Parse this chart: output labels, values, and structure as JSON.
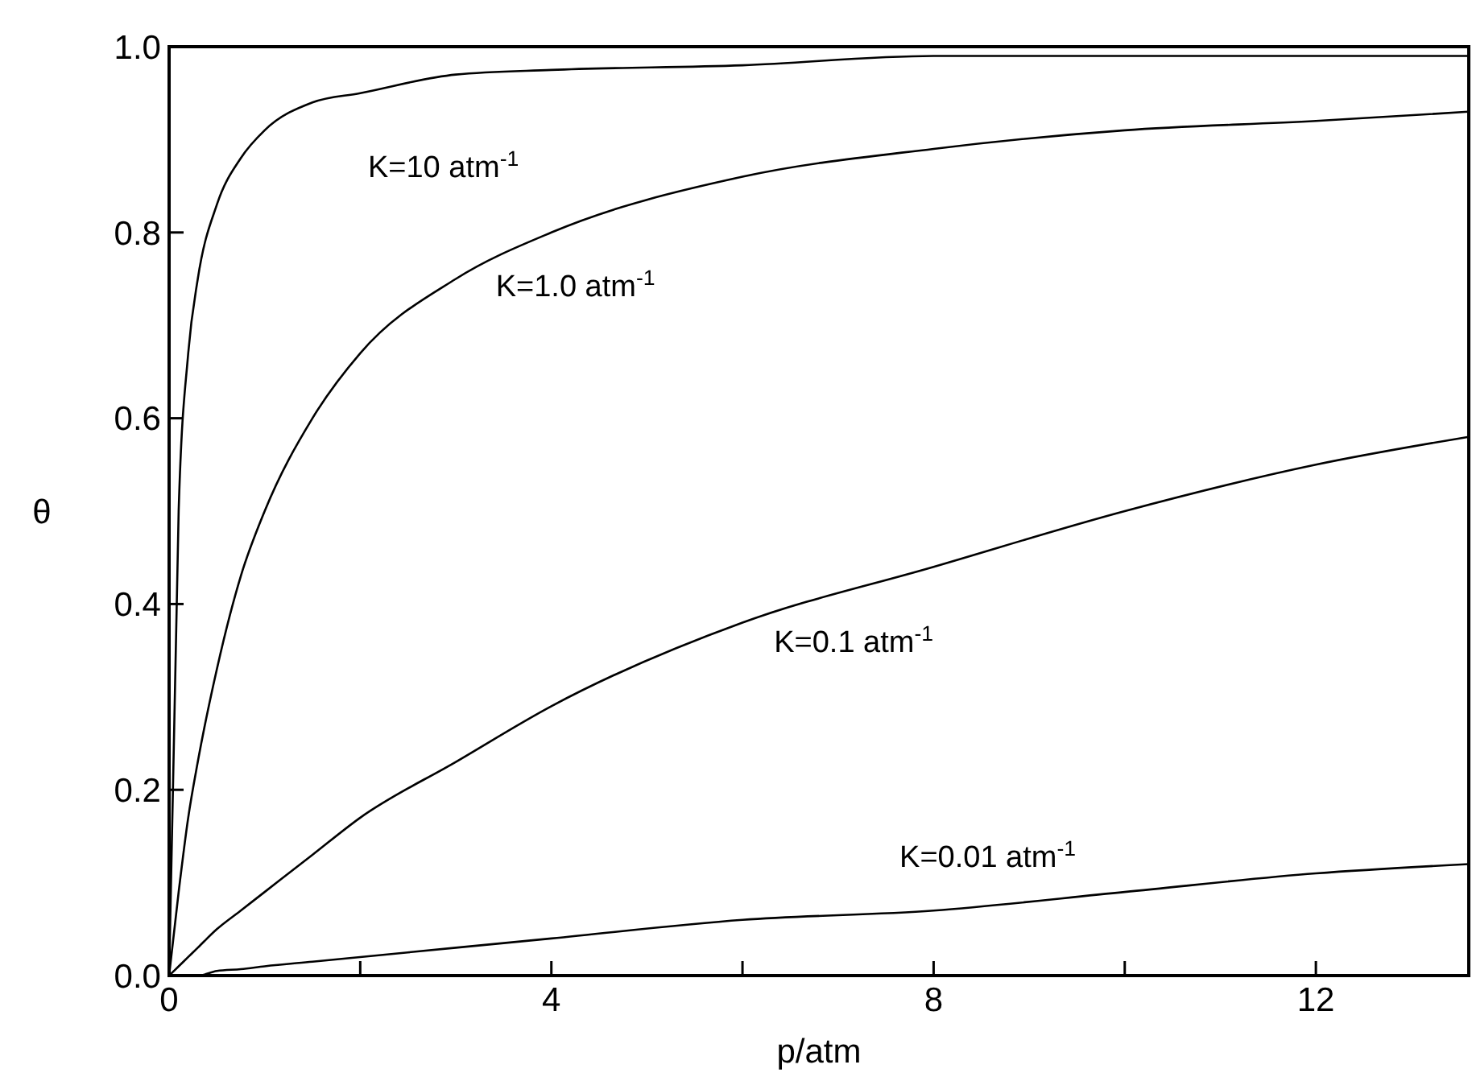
{
  "chart_data": {
    "type": "line",
    "xlabel": "p/atm",
    "ylabel": "θ",
    "x": [
      0,
      0.1,
      0.2,
      0.3,
      0.5,
      0.75,
      1,
      1.5,
      2,
      3,
      4,
      6,
      8,
      10,
      12,
      13.6
    ],
    "series": [
      {
        "name": "K=10 atm$^{-1}$",
        "color": "#000000",
        "values": [
          0,
          0.5,
          0.67,
          0.75,
          0.83,
          0.88,
          0.91,
          0.94,
          0.95,
          0.97,
          0.975,
          0.98,
          0.99,
          0.99,
          0.99,
          0.99
        ]
      },
      {
        "name": "K=1.0 atm$^{-1}$",
        "color": "#000000",
        "values": [
          0,
          0.09,
          0.17,
          0.23,
          0.33,
          0.43,
          0.5,
          0.6,
          0.67,
          0.75,
          0.8,
          0.86,
          0.89,
          0.91,
          0.92,
          0.93
        ]
      },
      {
        "name": "K=0.1 atm$^{-1}$",
        "color": "#000000",
        "values": [
          0,
          0.01,
          0.02,
          0.03,
          0.05,
          0.07,
          0.09,
          0.13,
          0.17,
          0.23,
          0.29,
          0.38,
          0.44,
          0.5,
          0.55,
          0.58
        ]
      },
      {
        "name": "K=0.01 atm$^{-1}$",
        "color": "#000000",
        "values": [
          0,
          0,
          0,
          0,
          0.005,
          0.007,
          0.01,
          0.015,
          0.02,
          0.03,
          0.04,
          0.06,
          0.07,
          0.09,
          0.11,
          0.12
        ]
      }
    ],
    "xlim": [
      0,
      13.6
    ],
    "ylim": [
      0,
      1
    ],
    "xticks": [
      0,
      {
        "value": 2,
        "label": null
      },
      4,
      {
        "value": 6,
        "label": null
      },
      8,
      {
        "value": 10,
        "label": null
      },
      12
    ],
    "yticks": [
      {
        "value": 0,
        "label": "0.0"
      },
      0.2,
      0.4,
      0.6,
      0.8,
      {
        "value": 1,
        "label": "1.0"
      }
    ],
    "grid": false,
    "marker": "none",
    "line_style": "solid"
  }
}
